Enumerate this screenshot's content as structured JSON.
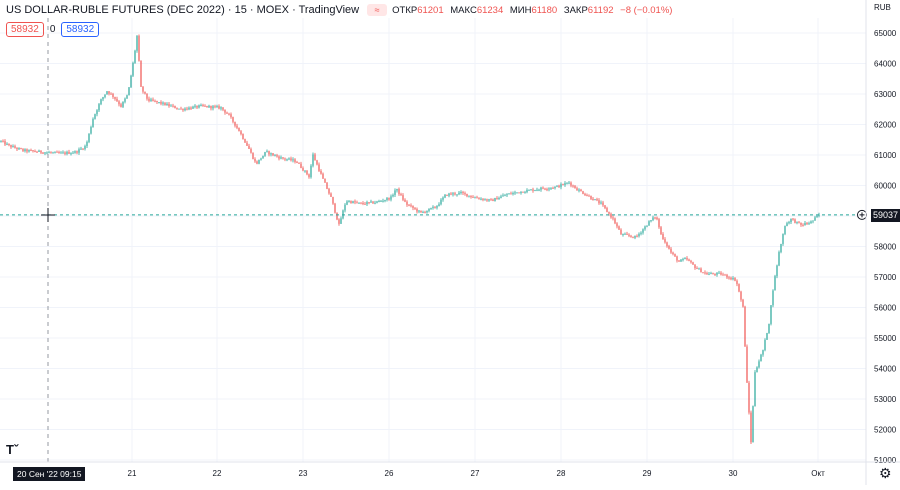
{
  "header": {
    "symbol_title": "US DOLLAR-RUBLE FUTURES (DEC 2022) · 15 · MOEX · TradingView",
    "open_label": "ОТКР",
    "open_value": "61201",
    "high_label": "МАКС",
    "high_value": "61234",
    "low_label": "МИН",
    "low_value": "61180",
    "close_label": "ЗАКР",
    "close_value": "61192",
    "change": "−8 (−0.01%)"
  },
  "trade_boxes": {
    "sell": "58932",
    "spread": "0",
    "buy": "58932"
  },
  "currency": "RUB",
  "last_price_label": "59037",
  "crosshair_date_label": "20 Сен '22   09:15",
  "colors": {
    "up": "#26a69a",
    "down": "#ef5350",
    "grid": "#f0f3fa",
    "last_line": "#26a69a",
    "text": "#131722"
  },
  "icons": {
    "eye": "eye-toggle-icon",
    "logo": "tradingview-logo-icon",
    "settings": "gear-icon",
    "plus": "add-alert-icon"
  },
  "chart_data": {
    "type": "candlestick",
    "title": "US DOLLAR-RUBLE FUTURES (DEC 2022) · 15 · MOEX",
    "y_ticks": [
      51000,
      52000,
      53000,
      54000,
      55000,
      56000,
      57000,
      58000,
      59000,
      60000,
      61000,
      62000,
      63000,
      64000,
      65000
    ],
    "ylim": [
      50900,
      65500
    ],
    "x_ticks": [
      "21",
      "22",
      "23",
      "26",
      "27",
      "28",
      "29",
      "30",
      "Окт"
    ],
    "last_price": 59037,
    "grid": true,
    "path": [
      [
        0,
        61450
      ],
      [
        8,
        61300
      ],
      [
        22,
        61150
      ],
      [
        40,
        61100
      ],
      [
        60,
        61050
      ],
      [
        75,
        61100
      ],
      [
        85,
        61300
      ],
      [
        92,
        62200
      ],
      [
        100,
        62800
      ],
      [
        106,
        63100
      ],
      [
        113,
        62900
      ],
      [
        120,
        62600
      ],
      [
        127,
        63000
      ],
      [
        133,
        64200
      ],
      [
        136,
        64900
      ],
      [
        140,
        63200
      ],
      [
        147,
        62800
      ],
      [
        160,
        62700
      ],
      [
        180,
        62500
      ],
      [
        200,
        62600
      ],
      [
        220,
        62550
      ],
      [
        228,
        62300
      ],
      [
        238,
        61800
      ],
      [
        248,
        61200
      ],
      [
        255,
        60700
      ],
      [
        265,
        61100
      ],
      [
        280,
        60900
      ],
      [
        295,
        60800
      ],
      [
        308,
        60300
      ],
      [
        312,
        61000
      ],
      [
        322,
        60200
      ],
      [
        330,
        59600
      ],
      [
        338,
        58700
      ],
      [
        345,
        59500
      ],
      [
        360,
        59400
      ],
      [
        375,
        59450
      ],
      [
        390,
        59600
      ],
      [
        395,
        59900
      ],
      [
        405,
        59400
      ],
      [
        420,
        59100
      ],
      [
        435,
        59300
      ],
      [
        445,
        59700
      ],
      [
        460,
        59750
      ],
      [
        475,
        59600
      ],
      [
        490,
        59500
      ],
      [
        505,
        59700
      ],
      [
        520,
        59800
      ],
      [
        540,
        59900
      ],
      [
        555,
        59950
      ],
      [
        568,
        60100
      ],
      [
        575,
        59900
      ],
      [
        585,
        59700
      ],
      [
        600,
        59400
      ],
      [
        612,
        58900
      ],
      [
        620,
        58400
      ],
      [
        635,
        58300
      ],
      [
        648,
        58800
      ],
      [
        655,
        59000
      ],
      [
        660,
        58400
      ],
      [
        670,
        57800
      ],
      [
        678,
        57500
      ],
      [
        685,
        57600
      ],
      [
        695,
        57300
      ],
      [
        705,
        57100
      ],
      [
        720,
        57100
      ],
      [
        735,
        56900
      ],
      [
        742,
        56000
      ],
      [
        746,
        53500
      ],
      [
        750,
        51600
      ],
      [
        754,
        53900
      ],
      [
        762,
        54600
      ],
      [
        768,
        55500
      ],
      [
        772,
        56600
      ],
      [
        778,
        57800
      ],
      [
        784,
        58700
      ],
      [
        790,
        58900
      ],
      [
        800,
        58700
      ],
      [
        810,
        58800
      ],
      [
        818,
        59037
      ]
    ]
  }
}
